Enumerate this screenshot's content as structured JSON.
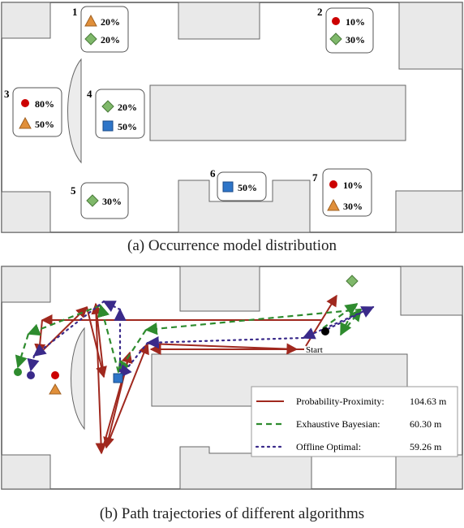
{
  "panel_a": {
    "caption": "(a) Occurrence model distribution",
    "locations": [
      {
        "id": "1",
        "items": [
          {
            "shape": "triangle",
            "color": "#e08f3a",
            "value": "20%"
          },
          {
            "shape": "diamond",
            "color": "#7fb86a",
            "value": "20%"
          }
        ]
      },
      {
        "id": "2",
        "items": [
          {
            "shape": "circle",
            "color": "#cc0000",
            "value": "10%"
          },
          {
            "shape": "diamond",
            "color": "#7fb86a",
            "value": "30%"
          }
        ]
      },
      {
        "id": "3",
        "items": [
          {
            "shape": "circle",
            "color": "#cc0000",
            "value": "80%"
          },
          {
            "shape": "triangle",
            "color": "#e08f3a",
            "value": "50%"
          }
        ]
      },
      {
        "id": "4",
        "items": [
          {
            "shape": "diamond",
            "color": "#7fb86a",
            "value": "20%"
          },
          {
            "shape": "square",
            "color": "#2e75c8",
            "value": "50%"
          }
        ]
      },
      {
        "id": "5",
        "items": [
          {
            "shape": "diamond",
            "color": "#7fb86a",
            "value": "30%"
          }
        ]
      },
      {
        "id": "6",
        "items": [
          {
            "shape": "square",
            "color": "#2e75c8",
            "value": "50%"
          }
        ]
      },
      {
        "id": "7",
        "items": [
          {
            "shape": "circle",
            "color": "#cc0000",
            "value": "10%"
          },
          {
            "shape": "triangle",
            "color": "#e08f3a",
            "value": "30%"
          }
        ]
      }
    ]
  },
  "panel_b": {
    "caption": "(b) Path trajectories of different algorithms",
    "start_label": "Start",
    "legend": [
      {
        "name": "Probability-Proximity:",
        "value": "104.63 m",
        "color": "#a0281e",
        "style": "solid"
      },
      {
        "name": "Exhaustive Bayesian:",
        "value": "60.30 m",
        "color": "#2e8b2e",
        "style": "dashed"
      },
      {
        "name": "Offline Optimal:",
        "value": "59.26 m",
        "color": "#3a2a8a",
        "style": "dotted"
      }
    ]
  }
}
